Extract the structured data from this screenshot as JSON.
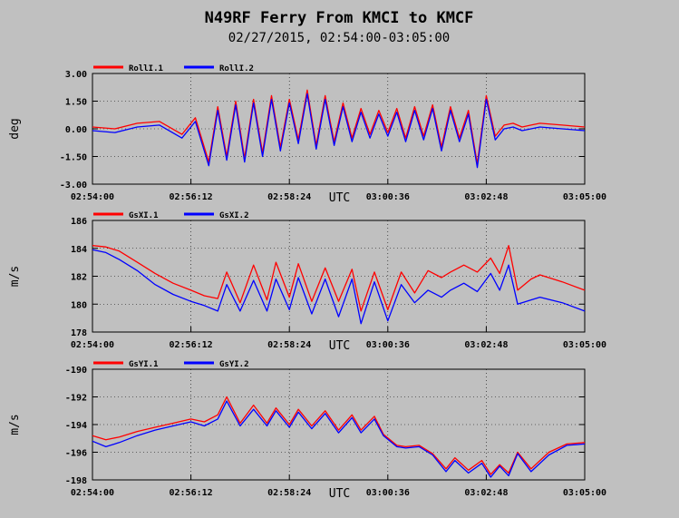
{
  "title": "N49RF Ferry From KMCI to KMCF",
  "subtitle": "02/27/2015, 02:54:00-03:05:00",
  "chart_data": [
    {
      "type": "line",
      "ylabel": "deg",
      "xlabel": "UTC",
      "x_ticks": [
        "02:54:00",
        "02:56:12",
        "02:58:24",
        "03:00:36",
        "03:02:48",
        "03:05:00"
      ],
      "x_range_minutes": [
        0,
        11
      ],
      "ylim": [
        -3.0,
        3.0
      ],
      "y_ticks": [
        "3.00",
        "1.50",
        "0.00",
        "-1.50",
        "-3.00"
      ],
      "y_tick_values": [
        3.0,
        1.5,
        0.0,
        -1.5,
        -3.0
      ],
      "grid": true,
      "legend": "top-left",
      "series": [
        {
          "name": "RollI.1",
          "color": "#ff0000",
          "x": [
            0.0,
            0.5,
            1.0,
            1.5,
            2.0,
            2.3,
            2.6,
            2.8,
            3.0,
            3.2,
            3.4,
            3.6,
            3.8,
            4.0,
            4.2,
            4.4,
            4.6,
            4.8,
            5.0,
            5.2,
            5.4,
            5.6,
            5.8,
            6.0,
            6.2,
            6.4,
            6.6,
            6.8,
            7.0,
            7.2,
            7.4,
            7.6,
            7.8,
            8.0,
            8.2,
            8.4,
            8.6,
            8.8,
            9.0,
            9.2,
            9.4,
            9.6,
            9.8,
            10.0,
            10.5,
            11.0
          ],
          "values": [
            0.1,
            0.0,
            0.3,
            0.4,
            -0.3,
            0.6,
            -1.8,
            1.2,
            -1.5,
            1.5,
            -1.6,
            1.6,
            -1.3,
            1.8,
            -1.0,
            1.6,
            -0.6,
            2.1,
            -0.9,
            1.8,
            -0.7,
            1.4,
            -0.5,
            1.1,
            -0.3,
            1.0,
            -0.2,
            1.1,
            -0.5,
            1.2,
            -0.4,
            1.3,
            -1.0,
            1.2,
            -0.5,
            1.0,
            -1.9,
            1.8,
            -0.4,
            0.2,
            0.3,
            0.1,
            0.2,
            0.3,
            0.2,
            0.1
          ]
        },
        {
          "name": "RollI.2",
          "color": "#0000ff",
          "x": [
            0.0,
            0.5,
            1.0,
            1.5,
            2.0,
            2.3,
            2.6,
            2.8,
            3.0,
            3.2,
            3.4,
            3.6,
            3.8,
            4.0,
            4.2,
            4.4,
            4.6,
            4.8,
            5.0,
            5.2,
            5.4,
            5.6,
            5.8,
            6.0,
            6.2,
            6.4,
            6.6,
            6.8,
            7.0,
            7.2,
            7.4,
            7.6,
            7.8,
            8.0,
            8.2,
            8.4,
            8.6,
            8.8,
            9.0,
            9.2,
            9.4,
            9.6,
            9.8,
            10.0,
            10.5,
            11.0
          ],
          "values": [
            -0.1,
            -0.2,
            0.1,
            0.2,
            -0.5,
            0.4,
            -2.0,
            1.0,
            -1.7,
            1.3,
            -1.8,
            1.4,
            -1.5,
            1.6,
            -1.2,
            1.4,
            -0.8,
            1.9,
            -1.1,
            1.6,
            -0.9,
            1.2,
            -0.7,
            0.9,
            -0.5,
            0.8,
            -0.4,
            0.9,
            -0.7,
            1.0,
            -0.6,
            1.1,
            -1.2,
            1.0,
            -0.7,
            0.8,
            -2.1,
            1.6,
            -0.6,
            0.0,
            0.1,
            -0.1,
            0.0,
            0.1,
            0.0,
            -0.1
          ]
        }
      ]
    },
    {
      "type": "line",
      "ylabel": "m/s",
      "xlabel": "UTC",
      "x_ticks": [
        "02:54:00",
        "02:56:12",
        "02:58:24",
        "03:00:36",
        "03:02:48",
        "03:05:00"
      ],
      "x_range_minutes": [
        0,
        11
      ],
      "ylim": [
        178,
        186
      ],
      "y_ticks": [
        "186",
        "184",
        "182",
        "180",
        "178"
      ],
      "y_tick_values": [
        186,
        184,
        182,
        180,
        178
      ],
      "grid": true,
      "legend": "top-left",
      "series": [
        {
          "name": "GsXI.1",
          "color": "#ff0000",
          "x": [
            0.0,
            0.3,
            0.6,
            1.0,
            1.4,
            1.8,
            2.2,
            2.5,
            2.8,
            3.0,
            3.3,
            3.6,
            3.9,
            4.1,
            4.4,
            4.6,
            4.9,
            5.2,
            5.5,
            5.8,
            6.0,
            6.3,
            6.6,
            6.9,
            7.2,
            7.5,
            7.8,
            8.0,
            8.3,
            8.6,
            8.9,
            9.1,
            9.3,
            9.5,
            9.8,
            10.0,
            10.5,
            11.0
          ],
          "values": [
            184.2,
            184.1,
            183.8,
            183.0,
            182.2,
            181.5,
            181.0,
            180.6,
            180.4,
            182.3,
            180.1,
            182.8,
            180.3,
            183.0,
            180.5,
            182.9,
            180.2,
            182.6,
            180.2,
            182.5,
            179.5,
            182.3,
            179.6,
            182.3,
            180.8,
            182.4,
            181.9,
            182.3,
            182.8,
            182.3,
            183.3,
            182.2,
            184.2,
            181.0,
            181.8,
            182.1,
            181.6,
            181.0
          ]
        },
        {
          "name": "GsXI.2",
          "color": "#0000ff",
          "x": [
            0.0,
            0.3,
            0.6,
            1.0,
            1.4,
            1.8,
            2.2,
            2.5,
            2.8,
            3.0,
            3.3,
            3.6,
            3.9,
            4.1,
            4.4,
            4.6,
            4.9,
            5.2,
            5.5,
            5.8,
            6.0,
            6.3,
            6.6,
            6.9,
            7.2,
            7.5,
            7.8,
            8.0,
            8.3,
            8.6,
            8.9,
            9.1,
            9.3,
            9.5,
            9.8,
            10.0,
            10.5,
            11.0
          ],
          "values": [
            183.9,
            183.7,
            183.2,
            182.4,
            181.4,
            180.7,
            180.2,
            179.9,
            179.5,
            181.4,
            179.5,
            181.7,
            179.5,
            181.8,
            179.6,
            181.9,
            179.3,
            181.8,
            179.1,
            181.8,
            178.6,
            181.6,
            178.8,
            181.4,
            180.1,
            181.0,
            180.5,
            181.0,
            181.5,
            180.9,
            182.2,
            181.0,
            182.8,
            180.0,
            180.3,
            180.5,
            180.1,
            179.5
          ]
        }
      ]
    },
    {
      "type": "line",
      "ylabel": "m/s",
      "xlabel": "UTC",
      "x_ticks": [
        "02:54:00",
        "02:56:12",
        "02:58:24",
        "03:00:36",
        "03:02:48",
        "03:05:00"
      ],
      "x_range_minutes": [
        0,
        11
      ],
      "ylim": [
        -198,
        -190
      ],
      "y_ticks": [
        "-190",
        "-192",
        "-194",
        "-196",
        "-198"
      ],
      "y_tick_values": [
        -190,
        -192,
        -194,
        -196,
        -198
      ],
      "grid": true,
      "legend": "top-left",
      "series": [
        {
          "name": "GsYI.1",
          "color": "#ff0000",
          "x": [
            0.0,
            0.3,
            0.6,
            1.0,
            1.4,
            1.8,
            2.2,
            2.5,
            2.8,
            3.0,
            3.3,
            3.6,
            3.9,
            4.1,
            4.4,
            4.6,
            4.9,
            5.2,
            5.5,
            5.8,
            6.0,
            6.3,
            6.5,
            6.8,
            7.0,
            7.3,
            7.6,
            7.9,
            8.1,
            8.4,
            8.7,
            8.9,
            9.1,
            9.3,
            9.5,
            9.8,
            10.2,
            10.6,
            11.0
          ],
          "values": [
            -194.8,
            -195.1,
            -194.9,
            -194.5,
            -194.2,
            -193.9,
            -193.6,
            -193.8,
            -193.3,
            -192.0,
            -193.9,
            -192.6,
            -193.9,
            -192.8,
            -194.0,
            -192.9,
            -194.1,
            -193.0,
            -194.4,
            -193.3,
            -194.4,
            -193.4,
            -194.7,
            -195.5,
            -195.6,
            -195.5,
            -196.1,
            -197.2,
            -196.4,
            -197.3,
            -196.6,
            -197.6,
            -196.9,
            -197.5,
            -196.0,
            -197.2,
            -196.0,
            -195.4,
            -195.3
          ]
        },
        {
          "name": "GsYI.2",
          "color": "#0000ff",
          "x": [
            0.0,
            0.3,
            0.6,
            1.0,
            1.4,
            1.8,
            2.2,
            2.5,
            2.8,
            3.0,
            3.3,
            3.6,
            3.9,
            4.1,
            4.4,
            4.6,
            4.9,
            5.2,
            5.5,
            5.8,
            6.0,
            6.3,
            6.5,
            6.8,
            7.0,
            7.3,
            7.6,
            7.9,
            8.1,
            8.4,
            8.7,
            8.9,
            9.1,
            9.3,
            9.5,
            9.8,
            10.2,
            10.6,
            11.0
          ],
          "values": [
            -195.2,
            -195.6,
            -195.3,
            -194.8,
            -194.4,
            -194.1,
            -193.8,
            -194.1,
            -193.6,
            -192.3,
            -194.1,
            -192.9,
            -194.1,
            -193.0,
            -194.2,
            -193.1,
            -194.3,
            -193.2,
            -194.6,
            -193.5,
            -194.6,
            -193.6,
            -194.8,
            -195.6,
            -195.7,
            -195.6,
            -196.2,
            -197.4,
            -196.6,
            -197.5,
            -196.8,
            -197.8,
            -197.0,
            -197.7,
            -196.1,
            -197.4,
            -196.2,
            -195.5,
            -195.4
          ]
        }
      ]
    }
  ]
}
